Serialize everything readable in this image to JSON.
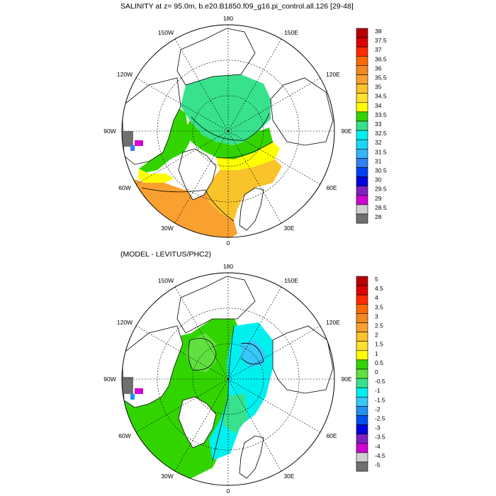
{
  "panel1": {
    "title": "SALINITY at z=  95.0m, b.e20.B1850.f09_g16.pi_control.all.126 [29-48]",
    "lon_labels": [
      "180",
      "150E",
      "120E",
      "90E",
      "60E",
      "30E",
      "0",
      "30W",
      "60W",
      "90W",
      "120W",
      "150W"
    ],
    "colorbar": {
      "labels": [
        "38",
        "37.5",
        "37",
        "36.5",
        "36",
        "35.5",
        "35",
        "34.5",
        "34",
        "33.5",
        "33",
        "32.5",
        "32",
        "31.5",
        "31",
        "30.5",
        "30",
        "29.5",
        "29",
        "28.5",
        "28"
      ],
      "colors": [
        "#b80000",
        "#dc0000",
        "#ff2a00",
        "#ff6a00",
        "#f48a1e",
        "#f9a030",
        "#f9c32a",
        "#ffdf30",
        "#ffff00",
        "#32d400",
        "#38e28c",
        "#00f0f0",
        "#18d8f8",
        "#38b4f8",
        "#3080f0",
        "#0040f0",
        "#0000e0",
        "#8020c0",
        "#d000d0",
        "#d0d0d0",
        "#707070"
      ]
    }
  },
  "panel2": {
    "title": "(MODEL - LEVITUS/PHC2)",
    "lon_labels": [
      "180",
      "150E",
      "120E",
      "90E",
      "60E",
      "30E",
      "0",
      "30W",
      "60W",
      "90W",
      "120W",
      "150W"
    ],
    "colorbar": {
      "labels": [
        "5",
        "4.5",
        "4",
        "3.5",
        "3",
        "2.5",
        "2",
        "1.5",
        "1",
        "0.5",
        "0",
        "-0.5",
        "-1",
        "-1.5",
        "-2",
        "-2.5",
        "-3",
        "-3.5",
        "-4",
        "-4.5",
        "-5"
      ],
      "colors": [
        "#b80000",
        "#dc0000",
        "#ff2a00",
        "#ff6a00",
        "#f48a1e",
        "#f9a030",
        "#f9c32a",
        "#ffdf30",
        "#ffff00",
        "#32d400",
        "#60e040",
        "#38e28c",
        "#00f0f0",
        "#38c8f8",
        "#2090f0",
        "#0050f0",
        "#0000e0",
        "#8020c0",
        "#d000d0",
        "#d0d0d0",
        "#707070"
      ]
    }
  }
}
